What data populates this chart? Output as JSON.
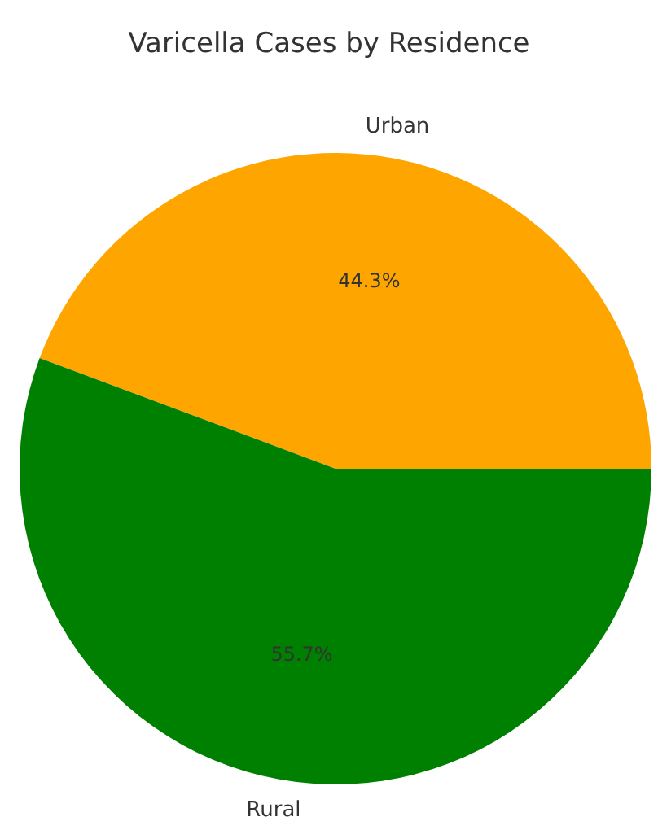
{
  "chart_data": {
    "type": "pie",
    "title": "Varicella Cases by Residence",
    "categories": [
      "Urban",
      "Rural"
    ],
    "values": [
      44.3,
      55.7
    ],
    "colors": [
      "#ffa500",
      "#008000"
    ],
    "value_labels": [
      "44.3%",
      "55.7%"
    ]
  }
}
